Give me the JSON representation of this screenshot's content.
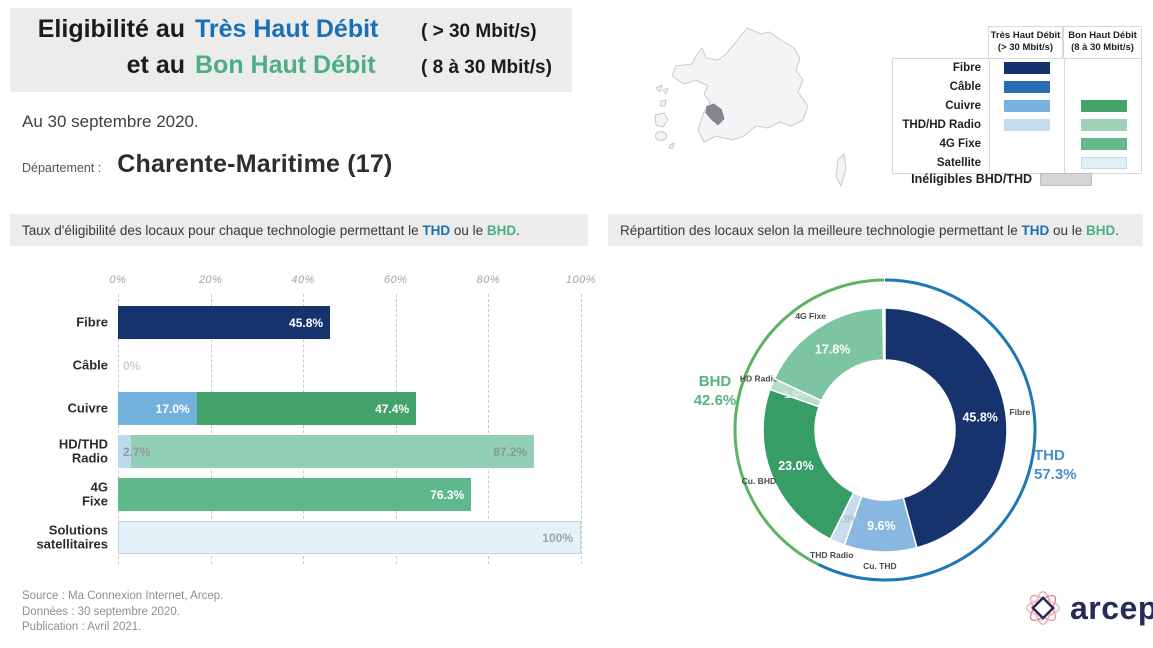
{
  "title": {
    "line1": {
      "prefix": "Eligibilité au",
      "tech": "Très Haut Débit",
      "speed": "( > 30 Mbit/s)"
    },
    "line2": {
      "prefix": "et au",
      "tech": "Bon Haut Débit",
      "speed": "( 8 à 30 Mbit/s)"
    }
  },
  "date_line": "Au 30 septembre 2020.",
  "department": {
    "label": "Département :",
    "name": "Charente-Maritime (17)"
  },
  "legend": {
    "columns": [
      {
        "title": "Très Haut Débit",
        "subtitle": "(> 30 Mbit/s)"
      },
      {
        "title": "Bon Haut Débit",
        "subtitle": "(8 à 30 Mbit/s)"
      }
    ],
    "rows": [
      {
        "label": "Fibre",
        "thd": "#14336e",
        "bhd": null
      },
      {
        "label": "Câble",
        "thd": "#2a6db5",
        "bhd": null
      },
      {
        "label": "Cuivre",
        "thd": "#78b1de",
        "bhd": "#44a36b"
      },
      {
        "label": "THD/HD Radio",
        "thd": "#c4dcef",
        "bhd": "#9ed2b9"
      },
      {
        "label": "4G Fixe",
        "thd": null,
        "bhd": "#63b98d"
      },
      {
        "label": "Satellite",
        "thd": null,
        "bhd": "#e1f0f7",
        "bhd_border": "#c3d9e3"
      }
    ],
    "ineligibles": {
      "label": "Inéligibles BHD/THD",
      "color": "#d5d5d5"
    }
  },
  "captions": {
    "left": {
      "pre": "Taux d'éligibilité des locaux pour chaque technologie permettant le ",
      "thd": "THD",
      "mid": " ou le ",
      "bhd": "BHD",
      "post": "."
    },
    "right": {
      "pre": "Répartition des locaux selon la meilleure technologie permettant le ",
      "thd": "THD",
      "mid": " ou le ",
      "bhd": "BHD",
      "post": "."
    }
  },
  "chart_data": [
    {
      "type": "bar",
      "title": "Taux d'éligibilité des locaux pour chaque technologie permettant le THD ou le BHD.",
      "xlabel": "",
      "ylabel": "",
      "xlim": [
        0,
        100
      ],
      "x_ticks": [
        "0%",
        "20%",
        "40%",
        "60%",
        "80%",
        "100%"
      ],
      "grid": "dashed-vertical",
      "rows": [
        {
          "label_lines": [
            "Fibre"
          ],
          "segments": [
            {
              "name": "Fibre THD",
              "value": 45.8,
              "label": "45.8%",
              "color": "#17336e",
              "label_color": "#ffffff",
              "label_pos": "end"
            }
          ]
        },
        {
          "label_lines": [
            "Câble"
          ],
          "segments": [
            {
              "name": "Câble THD",
              "value": 0,
              "label": "0%",
              "color": null,
              "label_color": "#cdd1d4",
              "label_pos": "zero"
            }
          ]
        },
        {
          "label_lines": [
            "Cuivre"
          ],
          "segments": [
            {
              "name": "Cuivre THD",
              "value": 17.0,
              "label": "17.0%",
              "color": "#74b0de",
              "label_color": "#ffffff",
              "label_pos": "end"
            },
            {
              "name": "Cuivre BHD",
              "value": 47.4,
              "label": "47.4%",
              "color": "#44a36b",
              "label_color": "#ffffff",
              "label_pos": "end"
            }
          ]
        },
        {
          "label_lines": [
            "HD/THD",
            "Radio"
          ],
          "segments": [
            {
              "name": "HD/THD Radio THD",
              "value": 2.7,
              "label": "2.7%",
              "color": "#bcd9ef",
              "label_color": "#8f9c99",
              "label_pos": "start"
            },
            {
              "name": "HD/THD Radio BHD",
              "value": 87.2,
              "label": "87.2%",
              "color": "#93cfb7",
              "label_color": "#859893",
              "label_pos": "end"
            }
          ]
        },
        {
          "label_lines": [
            "4G",
            "Fixe"
          ],
          "segments": [
            {
              "name": "4G Fixe BHD",
              "value": 76.3,
              "label": "76.3%",
              "color": "#5eb88c",
              "label_color": "#ffffff",
              "label_pos": "end"
            }
          ]
        },
        {
          "label_lines": [
            "Solutions",
            "satellitaires"
          ],
          "segments": [
            {
              "name": "Satellite BHD",
              "value": 100,
              "label": "100%",
              "color": "#e4f1f8",
              "label_color": "#9aa6ad",
              "label_pos": "end",
              "border": "#bdd7e4"
            }
          ]
        }
      ]
    },
    {
      "type": "donut",
      "title": "Répartition des locaux selon la meilleure technologie permettant le THD ou le BHD.",
      "slices": [
        {
          "name": "Fibre",
          "value": 45.8,
          "label": "45.8%",
          "color": "#17336e",
          "label_color": "#ffffff",
          "label_size": 12.5
        },
        {
          "name": "Cu. THD",
          "value": 9.6,
          "label": "9.6%",
          "color": "#88b8e0",
          "label_color": "#ffffff",
          "label_size": 12.5
        },
        {
          "name": "THD Radio",
          "value": 2.0,
          "label": "2.0%",
          "color": "#c9dcee",
          "label_color": "#aab9c8",
          "label_size": 10.5
        },
        {
          "name": "Cu. BHD",
          "value": 23.0,
          "label": "23.0%",
          "color": "#369d66",
          "label_color": "#ffffff",
          "label_size": 12.5
        },
        {
          "name": "HD Radio",
          "value": 1.5,
          "label": "1.5%",
          "color": "#b9ddcb",
          "label_color": "#dfe8e2",
          "label_size": 10.5
        },
        {
          "name": "4G Fixe",
          "value": 17.8,
          "label": "17.8%",
          "color": "#7cc4a2",
          "label_color": "#ffffff",
          "label_size": 12.5
        }
      ],
      "rings": [
        {
          "name": "THD",
          "value": 57.3,
          "color": "#1d78b5"
        },
        {
          "name": "BHD",
          "value": 42.6,
          "color": "#5eb266"
        }
      ],
      "side_labels": {
        "thd": {
          "title": "THD",
          "value": "57.3%",
          "color": "#4a8fc7"
        },
        "bhd": {
          "title": "BHD",
          "value": "42.6%",
          "color": "#56b47f"
        }
      }
    }
  ],
  "footer": {
    "source": "Source : Ma Connexion Internet, Arcep.",
    "data": "Données : 30 septembre 2020.",
    "publication": "Publication : Avril 2021."
  },
  "logo": {
    "text": "arcep"
  },
  "colors": {
    "thd": "#1a6fb5",
    "bhd": "#4cae82",
    "caption_bg": "#ececec",
    "ineligibles": "#d5d5d5"
  }
}
